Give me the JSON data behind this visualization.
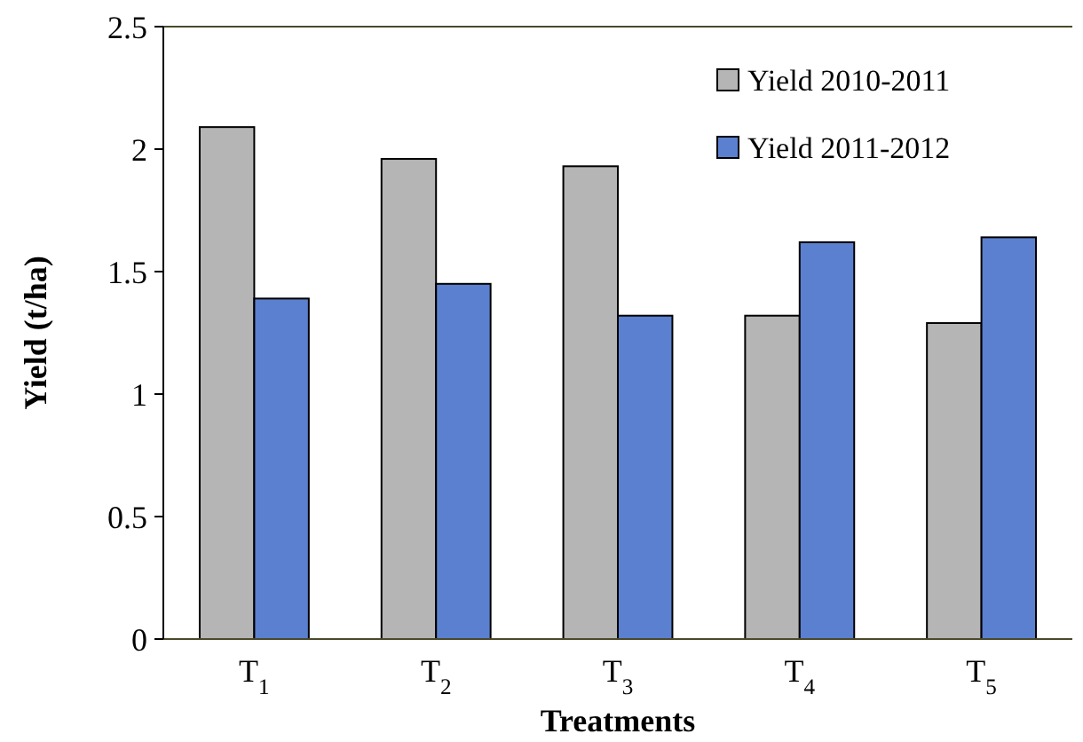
{
  "chart_data": {
    "type": "bar",
    "xlabel": "Treatments",
    "ylabel": "Yield (t/ha)",
    "categories": [
      "T$_{1}$",
      "T$_{2}$",
      "T$_{3}$",
      "T$_{4}$",
      "T$_{5}$"
    ],
    "series": [
      {
        "name": "Yield 2010-2011",
        "color": "#b5b5b5",
        "values": [
          2.09,
          1.96,
          1.93,
          1.32,
          1.29
        ]
      },
      {
        "name": "Yield 2011-2012",
        "color": "#5b80cf",
        "values": [
          1.39,
          1.45,
          1.32,
          1.62,
          1.64
        ]
      }
    ],
    "ylim": [
      0,
      2.5
    ],
    "yticks": [
      0,
      0.5,
      1,
      1.5,
      2,
      2.5
    ],
    "grid": false,
    "legend": "top right"
  }
}
